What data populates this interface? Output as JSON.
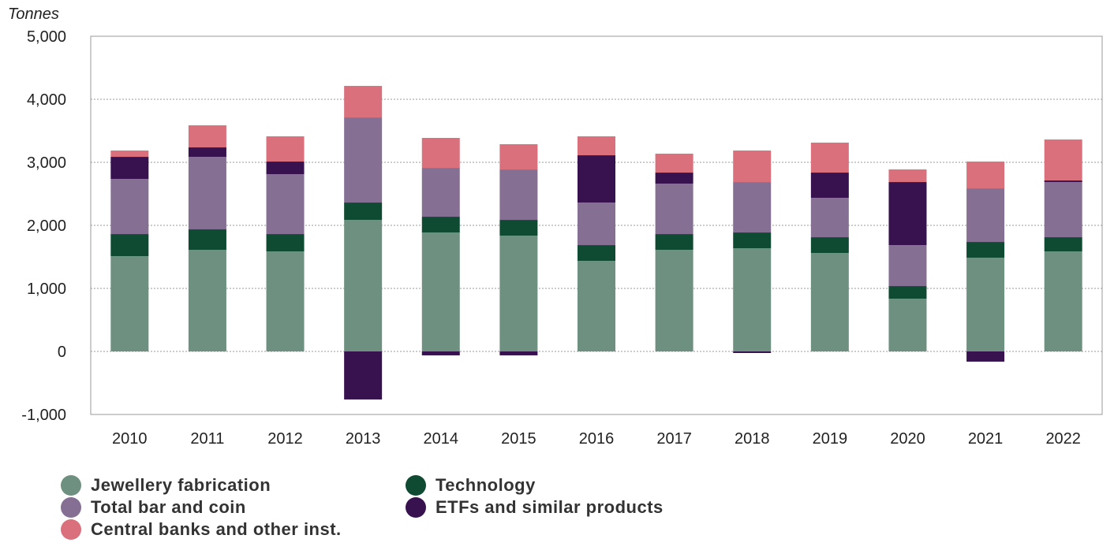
{
  "chart_data": {
    "type": "bar",
    "stacked": true,
    "unit_label": "Tonnes",
    "categories": [
      "2010",
      "2011",
      "2012",
      "2013",
      "2014",
      "2015",
      "2016",
      "2017",
      "2018",
      "2019",
      "2020",
      "2021",
      "2022"
    ],
    "ylim": [
      -1000,
      5000
    ],
    "yticks": [
      5000,
      4000,
      3000,
      2000,
      1000,
      0,
      -1000
    ],
    "ytick_labels": [
      "5,000",
      "4,000",
      "3,000",
      "2,000",
      "1,000",
      "0",
      "-1,000"
    ],
    "grid": true,
    "legend_position": "bottom",
    "series": [
      {
        "name": "Jewellery fabrication",
        "color": "#6e9080",
        "values": [
          1512,
          1612,
          1587,
          2087,
          1887,
          1837,
          1437,
          1612,
          1637,
          1562,
          837,
          1487,
          1587
        ]
      },
      {
        "name": "Technology",
        "color": "#0f4a33",
        "values": [
          350,
          325,
          275,
          275,
          250,
          250,
          250,
          250,
          250,
          250,
          200,
          250,
          225
        ]
      },
      {
        "name": "Total bar and coin",
        "color": "#857093",
        "values": [
          875,
          1150,
          950,
          1350,
          775,
          800,
          675,
          800,
          800,
          625,
          650,
          850,
          875
        ]
      },
      {
        "name": "ETFs and similar products",
        "color": "#37124f",
        "values": [
          350,
          150,
          200,
          -762,
          -62,
          -62,
          750,
          175,
          -25,
          400,
          1000,
          -162,
          25
        ]
      },
      {
        "name": "Central banks and other inst.",
        "color": "#d9707c",
        "values": [
          100,
          350,
          400,
          500,
          475,
          400,
          300,
          300,
          500,
          475,
          200,
          425,
          650
        ]
      }
    ],
    "legend_order": [
      0,
      1,
      2,
      3,
      4
    ]
  }
}
